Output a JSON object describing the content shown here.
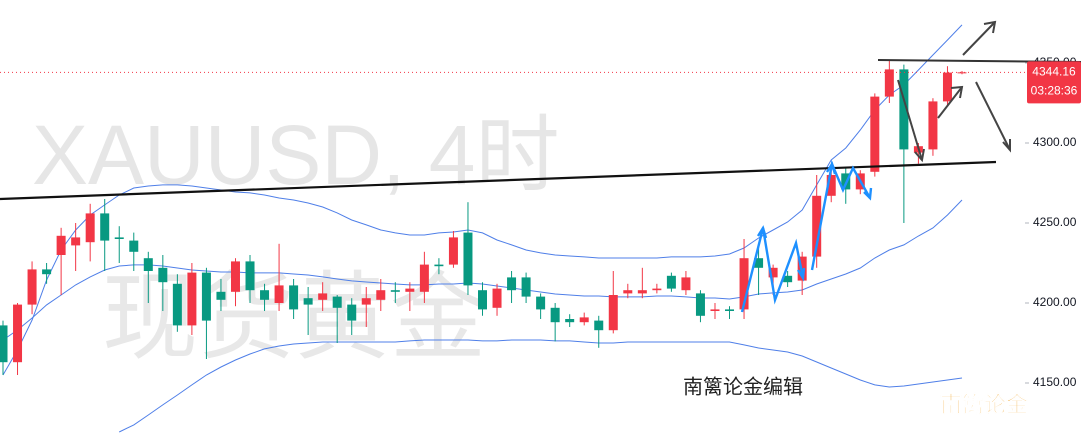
{
  "chart_data": {
    "type": "candlestick",
    "title": "XAUUSD, 4时",
    "subtitle": "现货黄金",
    "annotations": [
      "南篱论金编辑",
      "南篱论金"
    ],
    "countdown": "03:28:36",
    "up_color": "#f23645",
    "down_color": "#089981",
    "band_color": "#4f7fe8",
    "ylim": [
      4115.625,
      4389.375
    ],
    "yticks": [
      {
        "value": 4150,
        "label": "4150.00"
      },
      {
        "value": 4200,
        "label": "4200.00"
      },
      {
        "value": 4250,
        "label": "4250.00"
      },
      {
        "value": 4300,
        "label": "4300.00"
      },
      {
        "value": 4350,
        "label": "4350.00"
      }
    ],
    "open": [
      4186,
      4163,
      4199,
      4221,
      4230,
      4236,
      4238,
      4256,
      4241,
      4239,
      4228,
      4222,
      4212,
      4186,
      4219,
      4207,
      4207,
      4226,
      4208,
      4200,
      4211,
      4203,
      4202,
      4204,
      4199,
      4199,
      4202,
      4208,
      4207,
      4207,
      4224,
      4224,
      4244,
      4208,
      4197,
      4216,
      4216,
      4204,
      4197,
      4190,
      4188,
      4189,
      4183,
      4206,
      4206,
      4208,
      4217,
      4208,
      4206,
      4195,
      4196,
      4196,
      4228,
      4216,
      4217,
      4214,
      4229,
      4267,
      4281,
      4271,
      4282,
      4329,
      4346,
      4294,
      4296,
      4326,
      4344
    ],
    "high": [
      4189,
      4200,
      4226,
      4225,
      4247,
      4250,
      4262,
      4265,
      4248,
      4244,
      4232,
      4230,
      4218,
      4225,
      4222,
      4215,
      4228,
      4230,
      4212,
      4237,
      4215,
      4210,
      4213,
      4205,
      4203,
      4210,
      4215,
      4213,
      4213,
      4232,
      4228,
      4245,
      4263,
      4213,
      4212,
      4220,
      4219,
      4206,
      4200,
      4193,
      4194,
      4192,
      4220,
      4212,
      4222,
      4212,
      4219,
      4220,
      4208,
      4200,
      4198,
      4240,
      4235,
      4224,
      4220,
      4232,
      4280,
      4285,
      4285,
      4283,
      4331,
      4352,
      4349,
      4300,
      4328,
      4348,
      4345
    ],
    "low": [
      4155,
      4155,
      4193,
      4212,
      4205,
      4220,
      4226,
      4220,
      4225,
      4220,
      4200,
      4195,
      4182,
      4180,
      4165,
      4195,
      4198,
      4200,
      4195,
      4195,
      4190,
      4180,
      4195,
      4175,
      4180,
      4185,
      4195,
      4200,
      4195,
      4200,
      4218,
      4222,
      4205,
      4192,
      4192,
      4200,
      4200,
      4190,
      4176,
      4185,
      4186,
      4172,
      4181,
      4203,
      4203,
      4206,
      4207,
      4205,
      4188,
      4190,
      4190,
      4190,
      4205,
      4205,
      4210,
      4205,
      4222,
      4263,
      4262,
      4268,
      4279,
      4325,
      4250,
      4287,
      4292,
      4323,
      4343
    ],
    "close": [
      4163,
      4199,
      4221,
      4218,
      4242,
      4241,
      4256,
      4239,
      4240,
      4232,
      4220,
      4213,
      4186,
      4219,
      4189,
      4202,
      4226,
      4208,
      4202,
      4211,
      4196,
      4199,
      4206,
      4197,
      4189,
      4203,
      4208,
      4207,
      4209,
      4224,
      4223,
      4241,
      4211,
      4196,
      4209,
      4208,
      4204,
      4196,
      4188,
      4188,
      4191,
      4183,
      4205,
      4208,
      4208,
      4209,
      4209,
      4216,
      4192,
      4196,
      4195,
      4228,
      4222,
      4222,
      4213,
      4229,
      4267,
      4280,
      4271,
      4281,
      4329,
      4346,
      4296,
      4298,
      4326,
      4344,
      4344.16
    ],
    "upper_band": [
      4155,
      4170.6,
      4189.4,
      4214.4,
      4233.1,
      4245.6,
      4255,
      4261.3,
      4267.5,
      4271.9,
      4273.1,
      4273.8,
      4273.8,
      4273.1,
      4271.9,
      4270.6,
      4269.4,
      4268.8,
      4267.5,
      4265.6,
      4264.4,
      4262.5,
      4260,
      4256.3,
      4251.9,
      4248.8,
      4245.6,
      4243.8,
      4242.5,
      4242.5,
      4243.8,
      4244.4,
      4245.6,
      4243.8,
      4239.4,
      4236.3,
      4233.1,
      4231.3,
      4230,
      4229.4,
      4228.8,
      4228.1,
      4228.1,
      4228.1,
      4228.1,
      4228.1,
      4228.8,
      4228.8,
      4228.8,
      4229.4,
      4230.6,
      4234.4,
      4240.6,
      4245.6,
      4250.6,
      4258.1,
      4273.8,
      4289.4,
      4296.9,
      4308.1,
      4320.6,
      4330,
      4336.3,
      4345.6,
      4355,
      4364.4,
      4373.8
    ],
    "middle_band": [
      4176.9,
      4183.1,
      4190.6,
      4198.8,
      4205,
      4211.3,
      4216.3,
      4220.6,
      4223.1,
      4223.8,
      4223.8,
      4223.1,
      4221.9,
      4220.6,
      4220,
      4219.4,
      4219.4,
      4218.8,
      4218.8,
      4218.8,
      4218.1,
      4217.5,
      4216.3,
      4215,
      4213.8,
      4213.1,
      4212.5,
      4211.9,
      4211.3,
      4211.3,
      4211.9,
      4211.9,
      4212.5,
      4211.9,
      4210.6,
      4209.4,
      4208.1,
      4206.9,
      4205.6,
      4205,
      4204.4,
      4204.4,
      4203.8,
      4203.8,
      4203.8,
      4204.4,
      4204.4,
      4203.8,
      4203.1,
      4203.1,
      4202.5,
      4203.8,
      4205.6,
      4206.3,
      4206.9,
      4208.1,
      4211.9,
      4215,
      4218.1,
      4221.9,
      4228.1,
      4233.1,
      4236.3,
      4241.9,
      4246.9,
      4255,
      4264.4
    ],
    "lower_band": [
      null,
      null,
      null,
      null,
      null,
      null,
      null,
      null,
      4119.4,
      4123.8,
      4130,
      4136.3,
      4142.5,
      4148.8,
      4155,
      4160,
      4164.4,
      4168.1,
      4171.3,
      4173.1,
      4174.4,
      4175,
      4175.6,
      4175.6,
      4175.6,
      4175.6,
      4175.6,
      4175.6,
      4176.3,
      4176.9,
      4176.9,
      4176.9,
      4176.9,
      4176.3,
      4176.3,
      4176.9,
      4176.9,
      4176.9,
      4176.3,
      4176.3,
      4175.6,
      4175,
      4175,
      4175.6,
      4175.6,
      4175.6,
      4175.6,
      4175.6,
      4175.6,
      4175.6,
      4175.6,
      4173.8,
      4171.9,
      4170.6,
      4169.4,
      4166.9,
      4163.1,
      4159.4,
      4155.6,
      4151.9,
      4148.8,
      4147.5,
      4148.1,
      4149.4,
      4150.6,
      4151.9,
      4153.1
    ]
  }
}
